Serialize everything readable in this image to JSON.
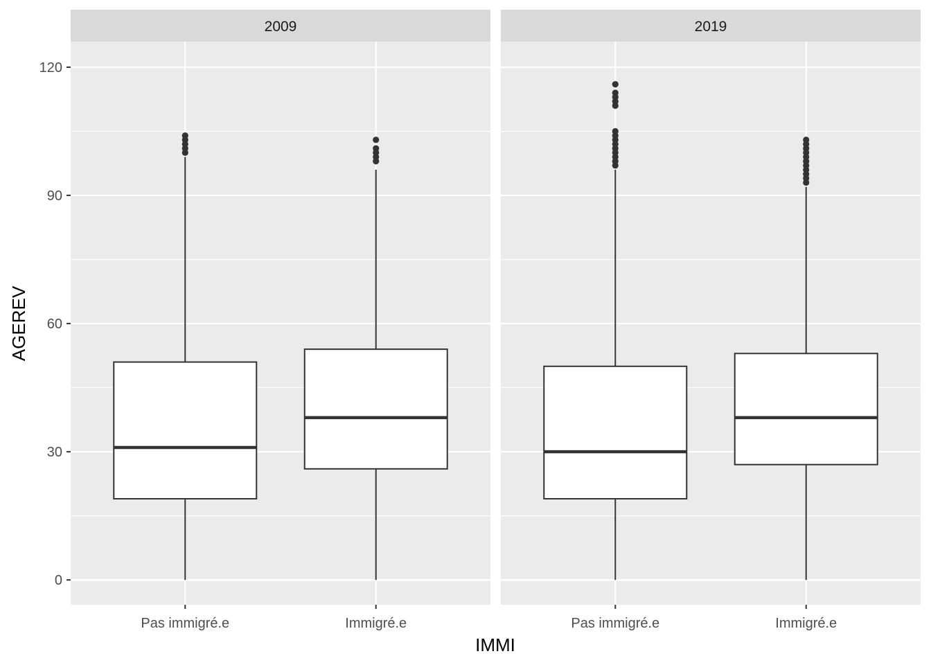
{
  "chart_data": {
    "type": "boxplot",
    "xlabel": "IMMI",
    "ylabel": "AGEREV",
    "ylim": [
      -5.8,
      126
    ],
    "yticks": [
      0,
      30,
      60,
      90,
      120
    ],
    "categories": [
      "Pas immigré.e",
      "Immigré.e"
    ],
    "grid": true,
    "facets": [
      {
        "strip": "2009",
        "boxes": [
          {
            "category": "Pas immigré.e",
            "min": 0,
            "q1": 19,
            "median": 31,
            "q3": 51,
            "max": 99,
            "outliers": [
              100,
              101,
              102,
              103,
              104
            ]
          },
          {
            "category": "Immigré.e",
            "min": 0,
            "q1": 26,
            "median": 38,
            "q3": 54,
            "max": 96,
            "outliers": [
              98,
              99,
              100,
              101,
              103
            ]
          }
        ]
      },
      {
        "strip": "2019",
        "boxes": [
          {
            "category": "Pas immigré.e",
            "min": 0,
            "q1": 19,
            "median": 30,
            "q3": 50,
            "max": 96,
            "outliers": [
              97,
              98,
              99,
              100,
              101,
              102,
              103,
              104,
              105,
              111,
              112,
              113,
              114,
              116
            ]
          },
          {
            "category": "Immigré.e",
            "min": 0,
            "q1": 27,
            "median": 38,
            "q3": 53,
            "max": 92,
            "outliers": [
              93,
              94,
              95,
              96,
              97,
              98,
              99,
              100,
              101,
              102,
              103
            ]
          }
        ]
      }
    ]
  },
  "colors": {
    "panel_background": "#ebebeb",
    "strip_background": "#d9d9d9",
    "grid": "#ffffff",
    "box_fill": "#ffffff",
    "box_line": "#333333"
  }
}
